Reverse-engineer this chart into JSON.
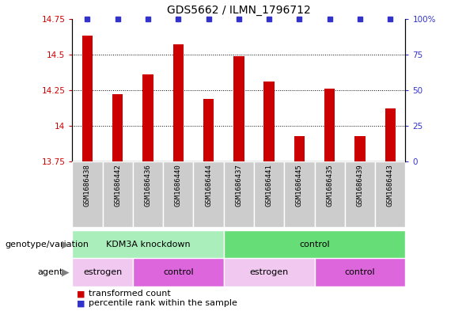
{
  "title": "GDS5662 / ILMN_1796712",
  "samples": [
    "GSM1686438",
    "GSM1686442",
    "GSM1686436",
    "GSM1686440",
    "GSM1686444",
    "GSM1686437",
    "GSM1686441",
    "GSM1686445",
    "GSM1686435",
    "GSM1686439",
    "GSM1686443"
  ],
  "bar_values": [
    14.63,
    14.22,
    14.36,
    14.57,
    14.19,
    14.49,
    14.31,
    13.93,
    14.26,
    13.93,
    14.12
  ],
  "bar_color": "#cc0000",
  "percentile_color": "#3333cc",
  "ylim_left": [
    13.75,
    14.75
  ],
  "ylim_right": [
    0,
    100
  ],
  "yticks_left": [
    13.75,
    14.0,
    14.25,
    14.5,
    14.75
  ],
  "yticks_right": [
    0,
    25,
    50,
    75,
    100
  ],
  "ytick_labels_left": [
    "13.75",
    "14",
    "14.25",
    "14.5",
    "14.75"
  ],
  "ytick_labels_right": [
    "0",
    "25",
    "50",
    "75",
    "100%"
  ],
  "grid_values": [
    14.0,
    14.25,
    14.5
  ],
  "genotype_groups": [
    {
      "label": "KDM3A knockdown",
      "start": 0,
      "end": 5,
      "color": "#aaeebb"
    },
    {
      "label": "control",
      "start": 5,
      "end": 11,
      "color": "#66dd77"
    }
  ],
  "agent_groups": [
    {
      "label": "estrogen",
      "start": 0,
      "end": 2,
      "color": "#f0c8f0"
    },
    {
      "label": "control",
      "start": 2,
      "end": 5,
      "color": "#dd66dd"
    },
    {
      "label": "estrogen",
      "start": 5,
      "end": 8,
      "color": "#f0c8f0"
    },
    {
      "label": "control",
      "start": 8,
      "end": 11,
      "color": "#dd66dd"
    }
  ],
  "legend_items": [
    {
      "label": "transformed count",
      "color": "#cc0000"
    },
    {
      "label": "percentile rank within the sample",
      "color": "#3333cc"
    }
  ],
  "title_fontsize": 10,
  "tick_fontsize": 7.5,
  "sample_fontsize": 6.5,
  "label_fontsize": 8,
  "bar_width": 0.35,
  "xlim": [
    -0.5,
    10.5
  ]
}
